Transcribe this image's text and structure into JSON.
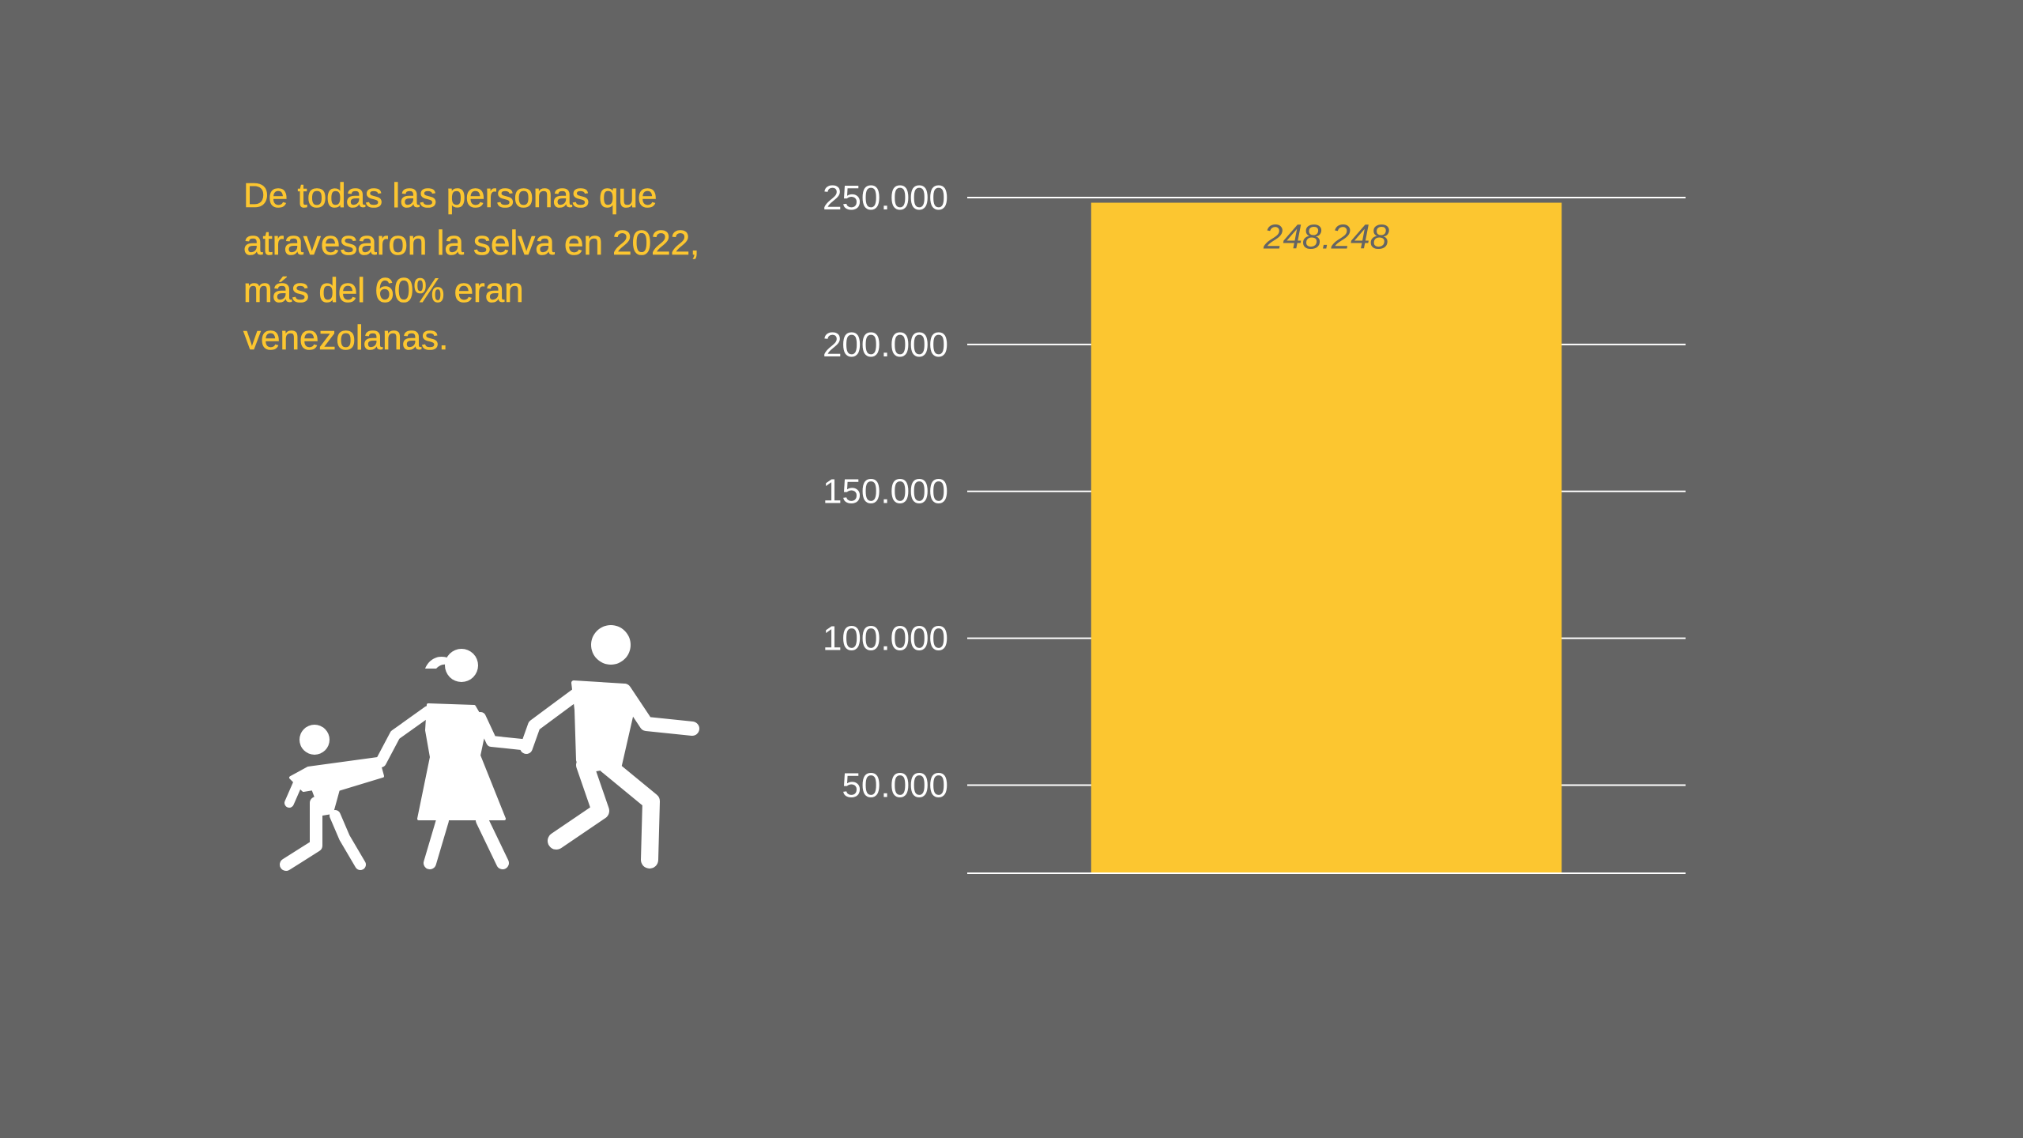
{
  "headline": "De todas las personas que atravesaron la selva en 2022, más del 60% eran venezolanas.",
  "icon": "family-walking-icon",
  "colors": {
    "background": "#646464",
    "accent": "#fcc630",
    "gridline": "#ffffff",
    "tick_text": "#ffffff",
    "data_label_text": "#646464"
  },
  "chart_data": {
    "type": "bar",
    "categories": [
      ""
    ],
    "values": [
      248248
    ],
    "data_labels": [
      "248.248"
    ],
    "title": "",
    "xlabel": "",
    "ylabel": "",
    "ylim": [
      20000,
      250000
    ],
    "yticks": [
      50000,
      100000,
      150000,
      200000,
      250000
    ],
    "ytick_labels": [
      "50.000",
      "100.000",
      "150.000",
      "200.000",
      "250.000"
    ],
    "grid": true
  }
}
